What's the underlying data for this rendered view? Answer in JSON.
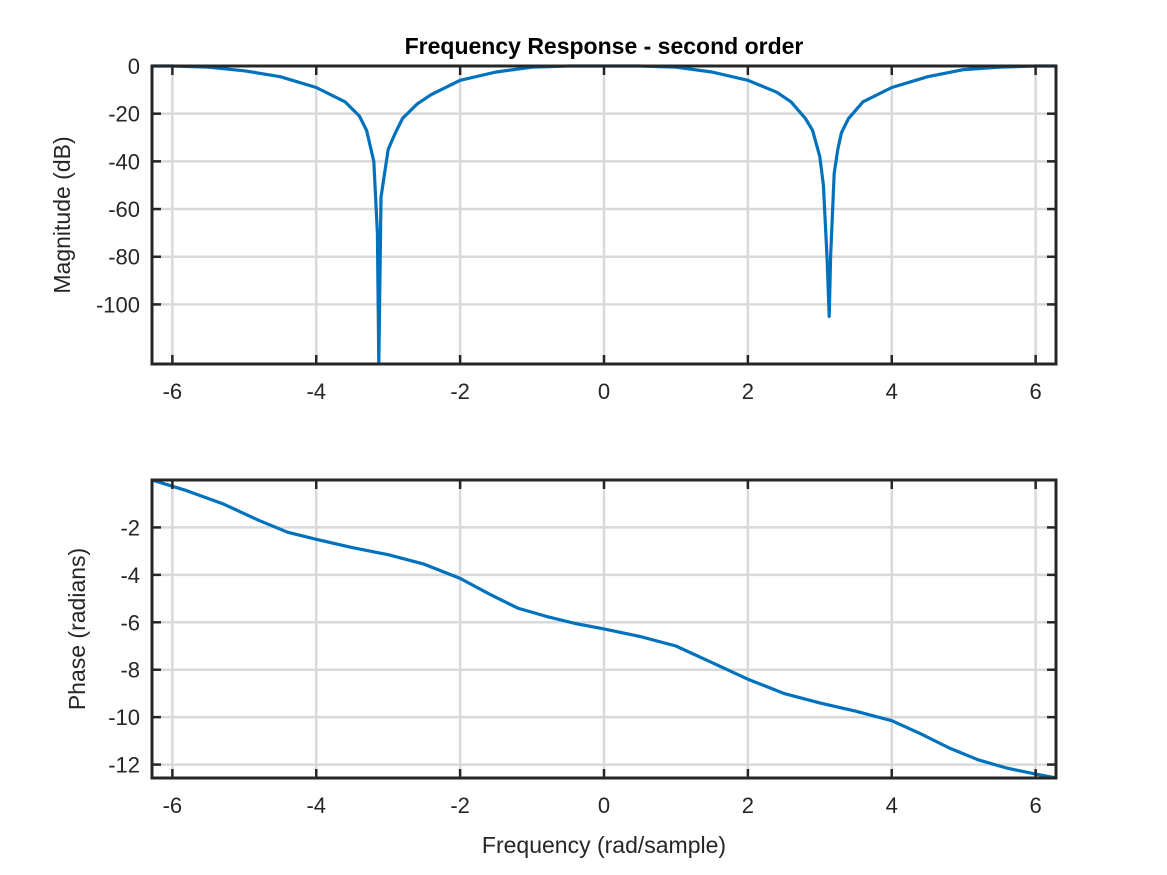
{
  "figure": {
    "title": "Frequency Response - second order"
  },
  "chart_data": [
    {
      "type": "line",
      "title": "Frequency Response - second order",
      "xlabel": "",
      "ylabel": "Magnitude (dB)",
      "xlim": [
        -6.2832,
        6.2832
      ],
      "ylim": [
        -125,
        0
      ],
      "grid": true,
      "xticks": [
        -6,
        -4,
        -2,
        0,
        2,
        4,
        6
      ],
      "xtick_labels": [
        "-6",
        "-4",
        "-2",
        "0",
        "2",
        "4",
        "6"
      ],
      "yticks": [
        0,
        -20,
        -40,
        -60,
        -80,
        -100
      ],
      "ytick_labels": [
        "0",
        "-20",
        "-40",
        "-60",
        "-80",
        "-100"
      ],
      "line_color": "#0072BD",
      "series": [
        {
          "x": [
            -6.283,
            -6.0,
            -5.5,
            -5.0,
            -4.5,
            -4.0,
            -3.6,
            -3.4,
            -3.3,
            -3.2,
            -3.15,
            -3.13,
            -3.1,
            -3.0,
            -2.9,
            -2.8,
            -2.6,
            -2.4,
            -2.0,
            -1.5,
            -1.0,
            -0.5,
            0.0,
            0.5,
            1.0,
            1.5,
            2.0,
            2.4,
            2.6,
            2.8,
            2.9,
            3.0,
            3.05,
            3.1,
            3.13,
            3.15,
            3.2,
            3.25,
            3.3,
            3.4,
            3.6,
            4.0,
            4.5,
            5.0,
            5.5,
            6.0,
            6.283
          ],
          "y": [
            0,
            0,
            -0.5,
            -2,
            -4.5,
            -9,
            -15,
            -21,
            -27,
            -40,
            -70,
            -125,
            -55,
            -35,
            -28,
            -22,
            -16,
            -12,
            -6,
            -2.5,
            -0.5,
            0,
            0,
            0,
            -0.5,
            -2.5,
            -6,
            -11,
            -15,
            -22,
            -27,
            -38,
            -50,
            -80,
            -105,
            -80,
            -45,
            -35,
            -28,
            -22,
            -15,
            -9,
            -4.5,
            -1.5,
            -0.5,
            0,
            0
          ]
        }
      ]
    },
    {
      "type": "line",
      "title": "",
      "xlabel": "Frequency (rad/sample)",
      "ylabel": "Phase (radians)",
      "xlim": [
        -6.2832,
        6.2832
      ],
      "ylim": [
        -12.566,
        0
      ],
      "grid": true,
      "xticks": [
        -6,
        -4,
        -2,
        0,
        2,
        4,
        6
      ],
      "xtick_labels": [
        "-6",
        "-4",
        "-2",
        "0",
        "2",
        "4",
        "6"
      ],
      "yticks": [
        -2,
        -4,
        -6,
        -8,
        -10,
        -12
      ],
      "ytick_labels": [
        "-2",
        "-4",
        "-6",
        "-8",
        "-10",
        "-12"
      ],
      "line_color": "#0072BD",
      "series": [
        {
          "x": [
            -6.283,
            -5.8,
            -5.3,
            -4.8,
            -4.4,
            -4.0,
            -3.5,
            -3.0,
            -2.5,
            -2.0,
            -1.6,
            -1.2,
            -0.8,
            -0.4,
            0.0,
            0.5,
            1.0,
            1.5,
            2.0,
            2.5,
            3.0,
            3.5,
            4.0,
            4.4,
            4.8,
            5.2,
            5.6,
            6.0,
            6.283
          ],
          "y": [
            0,
            -0.45,
            -1.0,
            -1.7,
            -2.2,
            -2.5,
            -2.85,
            -3.15,
            -3.55,
            -4.15,
            -4.8,
            -5.4,
            -5.75,
            -6.05,
            -6.28,
            -6.6,
            -7.0,
            -7.7,
            -8.4,
            -9.0,
            -9.4,
            -9.75,
            -10.15,
            -10.7,
            -11.3,
            -11.8,
            -12.15,
            -12.4,
            -12.57
          ]
        }
      ]
    }
  ]
}
